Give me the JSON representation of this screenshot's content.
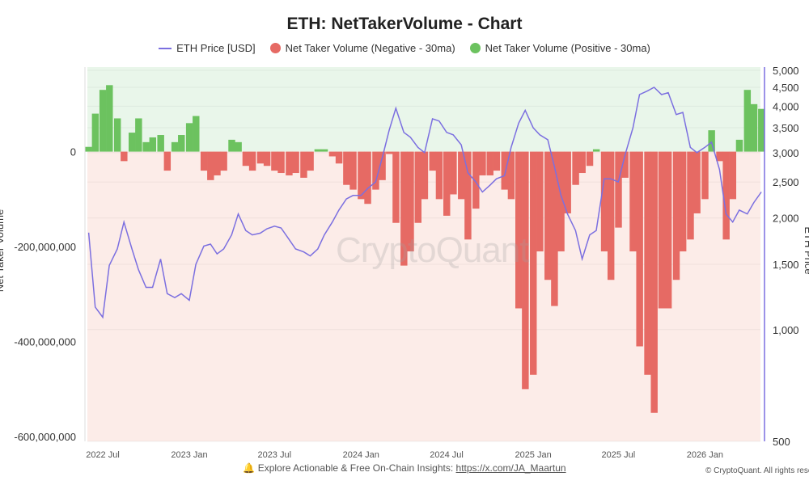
{
  "chart_data": {
    "type": "bar+line",
    "title": "ETH: NetTakerVolume - Chart",
    "legend": {
      "placement": "top",
      "entries": [
        {
          "label": "ETH Price [USD]",
          "color": "#7b6fe0",
          "kind": "line"
        },
        {
          "label": "Net Taker Volume (Negative - 30ma)",
          "color": "#e66a64",
          "kind": "dot"
        },
        {
          "label": "Net Taker Volume (Positive - 30ma)",
          "color": "#6cc25f",
          "kind": "dot"
        }
      ]
    },
    "left_axis": {
      "label": "Net Taker Volume",
      "ticks": [
        "0",
        "-200,000,000",
        "-400,000,000",
        "-600,000,000"
      ],
      "tick_values": [
        0,
        -200000000,
        -400000000,
        -600000000
      ],
      "range": [
        -610000000,
        178000000
      ]
    },
    "right_axis": {
      "label": "ETH Price",
      "scale": "log",
      "ticks": [
        "5,000",
        "4,500",
        "4,000",
        "3,500",
        "3,000",
        "2,500",
        "2,000",
        "1,500",
        "1,000",
        "500"
      ],
      "tick_values": [
        5000,
        4500,
        4000,
        3500,
        3000,
        2500,
        2000,
        1500,
        1000,
        500
      ],
      "range": [
        500,
        5100
      ]
    },
    "x_axis": {
      "ticks": [
        "2022 Jul",
        "2023 Jan",
        "2023 Jul",
        "2024 Jan",
        "2024 Jul",
        "2025 Jan",
        "2025 Jul",
        "2026 Jan"
      ],
      "tick_dates": [
        "2022-07-01",
        "2023-01-01",
        "2023-07-01",
        "2024-01-01",
        "2024-07-01",
        "2025-01-01",
        "2025-07-01",
        "2026-01-01"
      ]
    },
    "colors": {
      "price": "#7b6fe0",
      "negative": "#e66a64",
      "positive": "#6cc25f",
      "bg_positive": "#e9f6ea",
      "bg_negative": "#fcece8"
    },
    "dates": [
      "2022-06-01",
      "2022-06-15",
      "2022-07-01",
      "2022-07-15",
      "2022-08-01",
      "2022-08-15",
      "2022-09-01",
      "2022-09-15",
      "2022-10-01",
      "2022-10-15",
      "2022-11-01",
      "2022-11-15",
      "2022-12-01",
      "2022-12-15",
      "2023-01-01",
      "2023-01-15",
      "2023-02-01",
      "2023-02-15",
      "2023-03-01",
      "2023-03-15",
      "2023-04-01",
      "2023-04-15",
      "2023-05-01",
      "2023-05-15",
      "2023-06-01",
      "2023-06-15",
      "2023-07-01",
      "2023-07-15",
      "2023-08-01",
      "2023-08-15",
      "2023-09-01",
      "2023-09-15",
      "2023-10-01",
      "2023-10-15",
      "2023-11-01",
      "2023-11-15",
      "2023-12-01",
      "2023-12-15",
      "2024-01-01",
      "2024-01-15",
      "2024-02-01",
      "2024-02-15",
      "2024-03-01",
      "2024-03-15",
      "2024-04-01",
      "2024-04-15",
      "2024-05-01",
      "2024-05-15",
      "2024-06-01",
      "2024-06-15",
      "2024-07-01",
      "2024-07-15",
      "2024-08-01",
      "2024-08-15",
      "2024-09-01",
      "2024-09-15",
      "2024-10-01",
      "2024-10-15",
      "2024-11-01",
      "2024-11-15",
      "2024-12-01",
      "2024-12-15",
      "2025-01-01",
      "2025-01-15",
      "2025-02-01",
      "2025-02-15",
      "2025-03-01",
      "2025-03-15",
      "2025-04-01",
      "2025-04-15",
      "2025-05-01",
      "2025-05-15",
      "2025-06-01",
      "2025-06-15",
      "2025-07-01",
      "2025-07-15",
      "2025-08-01",
      "2025-08-15",
      "2025-09-01",
      "2025-09-15",
      "2025-10-01",
      "2025-10-15",
      "2025-11-01",
      "2025-11-15",
      "2025-12-01",
      "2025-12-15",
      "2026-01-01",
      "2026-01-15",
      "2026-02-01",
      "2026-02-15",
      "2026-03-01",
      "2026-03-15",
      "2026-04-01",
      "2026-04-15",
      "2026-05-01"
    ],
    "series": [
      {
        "name": "ETH Price [USD]",
        "axis": "right",
        "values": [
          1826,
          1150,
          1080,
          1490,
          1650,
          1950,
          1650,
          1450,
          1300,
          1300,
          1550,
          1250,
          1220,
          1250,
          1200,
          1500,
          1680,
          1700,
          1600,
          1650,
          1800,
          2050,
          1850,
          1800,
          1820,
          1870,
          1900,
          1880,
          1750,
          1650,
          1620,
          1580,
          1650,
          1800,
          1950,
          2100,
          2250,
          2300,
          2300,
          2400,
          2500,
          2900,
          3450,
          3950,
          3400,
          3300,
          3100,
          3000,
          3700,
          3650,
          3400,
          3350,
          3150,
          2650,
          2500,
          2350,
          2450,
          2550,
          2600,
          3100,
          3600,
          3900,
          3500,
          3350,
          3250,
          2750,
          2300,
          2050,
          1850,
          1550,
          1800,
          1850,
          2550,
          2550,
          2500,
          2950,
          3500,
          4300,
          4400,
          4500,
          4300,
          4350,
          3800,
          3850,
          3100,
          3000,
          3100,
          3200,
          2700,
          2050,
          1950,
          2100,
          2050,
          2200,
          2350
        ]
      },
      {
        "name": "Net Taker Volume (30ma)",
        "axis": "left",
        "values": [
          10000000,
          80000000,
          130000000,
          140000000,
          70000000,
          -20000000,
          40000000,
          70000000,
          20000000,
          30000000,
          35000000,
          -40000000,
          20000000,
          35000000,
          60000000,
          75000000,
          -40000000,
          -60000000,
          -50000000,
          -40000000,
          25000000,
          20000000,
          -30000000,
          -40000000,
          -25000000,
          -30000000,
          -40000000,
          -45000000,
          -50000000,
          -45000000,
          -55000000,
          -40000000,
          5000000,
          5000000,
          -10000000,
          -25000000,
          -70000000,
          -80000000,
          -100000000,
          -110000000,
          -80000000,
          -60000000,
          -5000000,
          -150000000,
          -240000000,
          -210000000,
          -150000000,
          -100000000,
          -40000000,
          -100000000,
          -135000000,
          -90000000,
          -100000000,
          -185000000,
          -120000000,
          -50000000,
          -50000000,
          -40000000,
          -80000000,
          -100000000,
          -330000000,
          -500000000,
          -470000000,
          -210000000,
          -270000000,
          -325000000,
          -210000000,
          -130000000,
          -70000000,
          -45000000,
          -30000000,
          5000000,
          -210000000,
          -270000000,
          -160000000,
          -55000000,
          -210000000,
          -410000000,
          -470000000,
          -550000000,
          -330000000,
          -330000000,
          -270000000,
          -210000000,
          -185000000,
          -130000000,
          -100000000,
          45000000,
          -20000000,
          -185000000,
          -100000000,
          25000000,
          130000000,
          100000000,
          90000000
        ]
      }
    ]
  },
  "watermark": "CryptoQuant",
  "footer": {
    "icon": "bell-icon",
    "text": "Explore Actionable & Free On-Chain Insights:",
    "link": "https://x.com/JA_Maartun"
  },
  "copyright": "© CryptoQuant. All rights reserved"
}
